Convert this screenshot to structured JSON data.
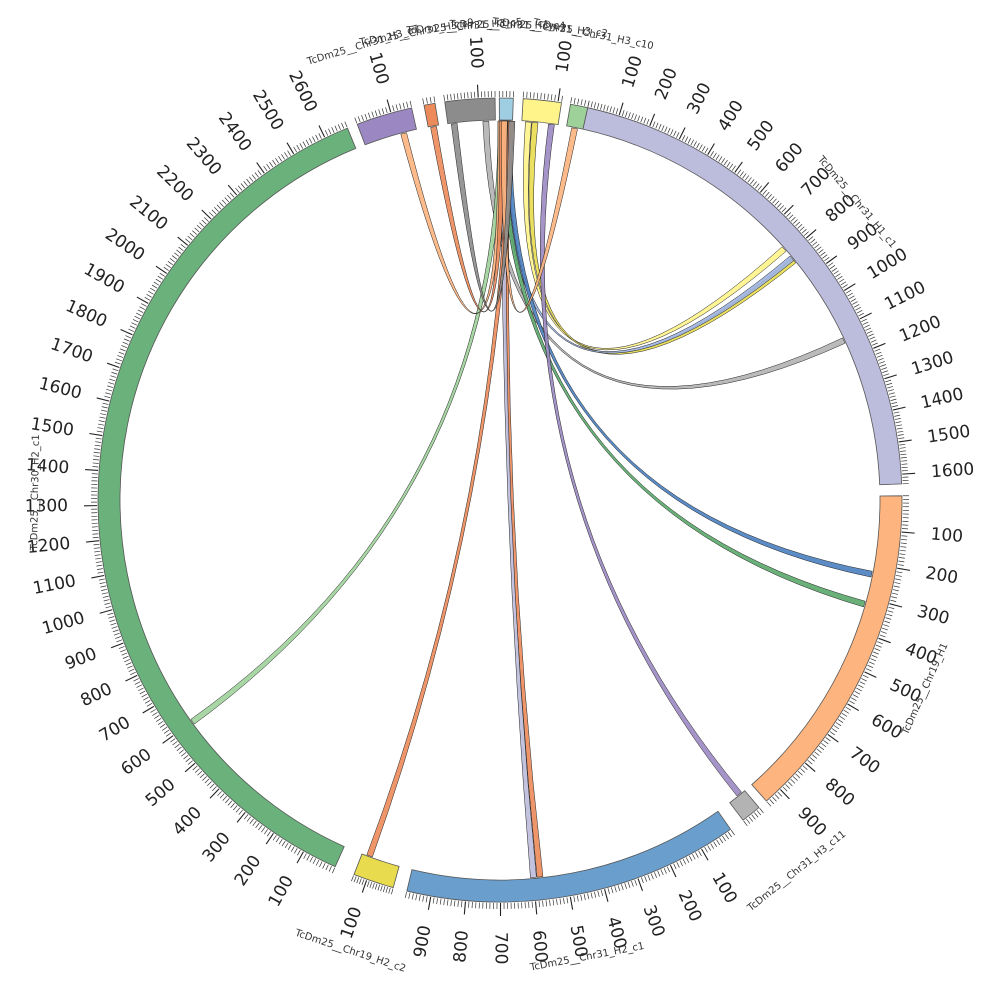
{
  "diagram": {
    "segments": [
      {
        "id": "h1c1",
        "name": "TcDm25__Chr31_H1_c1",
        "length": 1630,
        "color": "#bcbcdc",
        "major_step": 100
      },
      {
        "id": "chr19h1",
        "name": "TcDm25__Chr19_H1",
        "length": 950,
        "color": "#fdb47e",
        "major_step": 100
      },
      {
        "id": "h3c11",
        "name": "TcDm25__Chr31_H3_c11",
        "length": 60,
        "color": "#b3b3b3",
        "major_step": 100
      },
      {
        "id": "h2c1",
        "name": "TcDm25__Chr31_H2_c1",
        "length": 970,
        "color": "#6a9ecd",
        "major_step": 100
      },
      {
        "id": "c19h2c2",
        "name": "TcDm25__Chr19_H2_c2",
        "length": 150,
        "color": "#e8dc4e",
        "major_step": 100
      },
      {
        "id": "c30h2c1",
        "name": "TcDm25__Chr30_H2_c1",
        "length": 2670,
        "color": "#6ab17c",
        "major_step": 100
      },
      {
        "id": "sm1",
        "name": "TcDm25__Chr31_H3_c7",
        "length": 160,
        "color": "#9b88c2",
        "major_step": 100
      },
      {
        "id": "sm2",
        "name": "TcDm25__Chr31_H3_c9",
        "length": 30,
        "color": "#ec8a5a",
        "major_step": 100
      },
      {
        "id": "sm3",
        "name": "TcDm25__Chr31_H3_c5",
        "length": 150,
        "color": "#8c8c8c",
        "major_step": 100
      },
      {
        "id": "sm4",
        "name": "TcDm25__Chr31_H3_c4",
        "length": 40,
        "color": "#9fcde2",
        "major_step": 100
      },
      {
        "id": "sm5",
        "name": "TcDm25__Chr31_H3_c2",
        "length": 110,
        "color": "#fff489",
        "major_step": 100
      },
      {
        "id": "sm6",
        "name": "TcDm25__Chr31_H3_c10",
        "length": 50,
        "color": "#9ed19a",
        "major_step": 100
      }
    ],
    "links": [
      {
        "from": "sm5",
        "from_pos": 20,
        "to": "h1c1",
        "to_pos": 780,
        "color": "#fff489"
      },
      {
        "from": "sm5",
        "from_pos": 40,
        "to": "h1c1",
        "to_pos": 830,
        "color": "#e8dc4e"
      },
      {
        "from": "sm4",
        "from_pos": 20,
        "to": "h1c1",
        "to_pos": 820,
        "color": "#9fb4e2"
      },
      {
        "from": "sm3",
        "from_pos": 120,
        "to": "h1c1",
        "to_pos": 1140,
        "color": "#b3b3b3"
      },
      {
        "from": "sm4",
        "from_pos": 30,
        "to": "chr19h1",
        "to_pos": 230,
        "color": "#4a7fc0"
      },
      {
        "from": "sm4",
        "from_pos": 10,
        "to": "chr19h1",
        "to_pos": 320,
        "color": "#5aa86a"
      },
      {
        "from": "sm5",
        "from_pos": 90,
        "to": "h3c11",
        "to_pos": 20,
        "color": "#9b88c2"
      },
      {
        "from": "sm4",
        "from_pos": 25,
        "to": "h2c1",
        "to_pos": 580,
        "color": "#ec8a5a"
      },
      {
        "from": "sm4",
        "from_pos": 15,
        "to": "h2c1",
        "to_pos": 600,
        "color": "#bcbcdc"
      },
      {
        "from": "sm4",
        "from_pos": 35,
        "to": "c19h2c2",
        "to_pos": 120,
        "color": "#ec8a5a"
      },
      {
        "from": "sm4",
        "from_pos": 5,
        "to": "c30h2c1",
        "to_pos": 600,
        "color": "#9ed19a"
      },
      {
        "from": "sm1",
        "from_pos": 120,
        "to": "sm4",
        "to_pos": 5,
        "color": "#fdb47e"
      },
      {
        "from": "sm2",
        "from_pos": 15,
        "to": "sm4",
        "to_pos": 10,
        "color": "#ec8a5a"
      },
      {
        "from": "sm6",
        "from_pos": 25,
        "to": "sm4",
        "to_pos": 15,
        "color": "#fdb47e"
      },
      {
        "from": "sm3",
        "from_pos": 20,
        "to": "sm4",
        "to_pos": 38,
        "color": "#8c8c8c"
      }
    ]
  }
}
